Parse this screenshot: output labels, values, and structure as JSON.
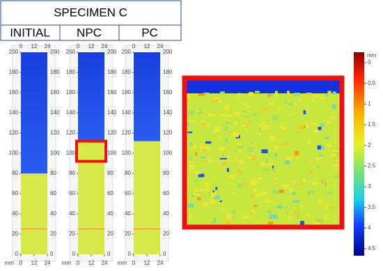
{
  "header": {
    "title": "SPECIMEN C",
    "columns": [
      "INITIAL",
      "NPC",
      "PC"
    ]
  },
  "panels": {
    "yticks": [
      0,
      20,
      40,
      60,
      80,
      100,
      120,
      140,
      160,
      180,
      200
    ],
    "ylim": [
      0,
      200
    ],
    "xticks": [
      0,
      12,
      24
    ],
    "xlim": [
      0,
      24
    ],
    "unit": "mm"
  },
  "colorbar": {
    "unit": "mm",
    "ticks": [
      0,
      0.5,
      1,
      1.5,
      2,
      2.5,
      3,
      3.5,
      4,
      4.5
    ],
    "lim": [
      0,
      4.5
    ]
  }
}
